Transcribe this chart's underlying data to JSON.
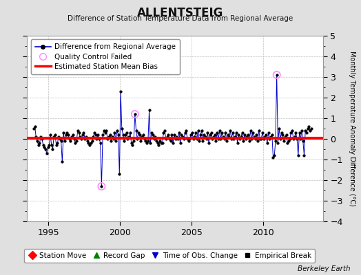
{
  "title": "ALLENTSTEIG",
  "subtitle": "Difference of Station Temperature Data from Regional Average",
  "ylabel": "Monthly Temperature Anomaly Difference (°C)",
  "xlabel_credit": "Berkeley Earth",
  "xlim": [
    1993.5,
    2014.2
  ],
  "ylim": [
    -4,
    5
  ],
  "yticks": [
    -4,
    -3,
    -2,
    -1,
    0,
    1,
    2,
    3,
    4,
    5
  ],
  "xticks": [
    1995,
    2000,
    2005,
    2010
  ],
  "bias_value": 0.05,
  "line_color": "#0000cc",
  "line_marker_color": "#000000",
  "bias_color": "#ff0000",
  "qc_color": "#ff88ff",
  "bg_color": "#e0e0e0",
  "plot_bg": "#ffffff",
  "legend1_entries": [
    {
      "label": "Difference from Regional Average"
    },
    {
      "label": "Quality Control Failed"
    },
    {
      "label": "Estimated Station Mean Bias"
    }
  ],
  "legend2_entries": [
    {
      "label": "Station Move",
      "color": "#ff0000",
      "marker": "D"
    },
    {
      "label": "Record Gap",
      "color": "#008000",
      "marker": "^"
    },
    {
      "label": "Time of Obs. Change",
      "color": "#0000cc",
      "marker": "v"
    },
    {
      "label": "Empirical Break",
      "color": "#000000",
      "marker": "s"
    }
  ],
  "time_series": [
    1993.958,
    1994.042,
    1994.125,
    1994.208,
    1994.292,
    1994.375,
    1994.458,
    1994.542,
    1994.625,
    1994.708,
    1994.792,
    1994.875,
    1994.958,
    1995.042,
    1995.125,
    1995.208,
    1995.292,
    1995.375,
    1995.458,
    1995.542,
    1995.625,
    1995.708,
    1995.792,
    1995.875,
    1995.958,
    1996.042,
    1996.125,
    1996.208,
    1996.292,
    1996.375,
    1996.458,
    1996.542,
    1996.625,
    1996.708,
    1996.792,
    1996.875,
    1996.958,
    1997.042,
    1997.125,
    1997.208,
    1997.292,
    1997.375,
    1997.458,
    1997.542,
    1997.625,
    1997.708,
    1997.792,
    1997.875,
    1997.958,
    1998.042,
    1998.125,
    1998.208,
    1998.292,
    1998.375,
    1998.458,
    1998.542,
    1998.625,
    1998.708,
    1998.792,
    1998.875,
    1998.958,
    1999.042,
    1999.125,
    1999.208,
    1999.292,
    1999.375,
    1999.458,
    1999.542,
    1999.625,
    1999.708,
    1999.792,
    1999.875,
    1999.958,
    2000.042,
    2000.125,
    2000.208,
    2000.292,
    2000.375,
    2000.458,
    2000.542,
    2000.625,
    2000.708,
    2000.792,
    2000.875,
    2000.958,
    2001.042,
    2001.125,
    2001.208,
    2001.292,
    2001.375,
    2001.458,
    2001.542,
    2001.625,
    2001.708,
    2001.792,
    2001.875,
    2001.958,
    2002.042,
    2002.125,
    2002.208,
    2002.292,
    2002.375,
    2002.458,
    2002.542,
    2002.625,
    2002.708,
    2002.792,
    2002.875,
    2002.958,
    2003.042,
    2003.125,
    2003.208,
    2003.292,
    2003.375,
    2003.458,
    2003.542,
    2003.625,
    2003.708,
    2003.792,
    2003.875,
    2003.958,
    2004.042,
    2004.125,
    2004.208,
    2004.292,
    2004.375,
    2004.458,
    2004.542,
    2004.625,
    2004.708,
    2004.792,
    2004.875,
    2004.958,
    2005.042,
    2005.125,
    2005.208,
    2005.292,
    2005.375,
    2005.458,
    2005.542,
    2005.625,
    2005.708,
    2005.792,
    2005.875,
    2005.958,
    2006.042,
    2006.125,
    2006.208,
    2006.292,
    2006.375,
    2006.458,
    2006.542,
    2006.625,
    2006.708,
    2006.792,
    2006.875,
    2006.958,
    2007.042,
    2007.125,
    2007.208,
    2007.292,
    2007.375,
    2007.458,
    2007.542,
    2007.625,
    2007.708,
    2007.792,
    2007.875,
    2007.958,
    2008.042,
    2008.125,
    2008.208,
    2008.292,
    2008.375,
    2008.458,
    2008.542,
    2008.625,
    2008.708,
    2008.792,
    2008.875,
    2008.958,
    2009.042,
    2009.125,
    2009.208,
    2009.292,
    2009.375,
    2009.458,
    2009.542,
    2009.625,
    2009.708,
    2009.792,
    2009.875,
    2009.958,
    2010.042,
    2010.125,
    2010.208,
    2010.292,
    2010.375,
    2010.458,
    2010.542,
    2010.625,
    2010.708,
    2010.792,
    2010.875,
    2010.958,
    2011.042,
    2011.125,
    2011.208,
    2011.292,
    2011.375,
    2011.458,
    2011.542,
    2011.625,
    2011.708,
    2011.792,
    2011.875,
    2011.958,
    2012.042,
    2012.125,
    2012.208,
    2012.292,
    2012.375,
    2012.458,
    2012.542,
    2012.625,
    2012.708,
    2012.792,
    2012.875,
    2012.958,
    2013.042,
    2013.125,
    2013.208,
    2013.292,
    2013.375
  ],
  "values": [
    0.5,
    0.6,
    0.1,
    -0.1,
    -0.3,
    -0.2,
    0.1,
    0.0,
    -0.3,
    -0.4,
    -0.5,
    -0.7,
    -0.4,
    -0.3,
    0.2,
    -0.3,
    -0.5,
    0.1,
    0.2,
    -0.3,
    -0.2,
    0.1,
    0.0,
    -0.1,
    -1.1,
    0.3,
    -0.1,
    0.2,
    0.3,
    0.2,
    0.0,
    -0.1,
    0.1,
    0.2,
    0.0,
    -0.2,
    -0.1,
    0.4,
    0.3,
    0.1,
    0.0,
    0.2,
    0.3,
    0.0,
    0.1,
    -0.1,
    -0.2,
    -0.3,
    -0.2,
    -0.1,
    0.1,
    0.3,
    0.2,
    0.0,
    0.2,
    0.0,
    -0.2,
    -2.3,
    0.2,
    0.4,
    0.3,
    0.4,
    0.0,
    0.1,
    0.2,
    -0.1,
    0.1,
    0.0,
    0.3,
    -0.1,
    0.4,
    0.2,
    -1.7,
    2.3,
    0.5,
    0.2,
    -0.1,
    0.2,
    0.3,
    0.0,
    0.1,
    0.3,
    -0.2,
    -0.3,
    -0.1,
    1.2,
    0.4,
    0.0,
    0.3,
    0.2,
    -0.1,
    0.1,
    0.2,
    0.0,
    -0.1,
    -0.2,
    -0.1,
    1.4,
    -0.2,
    0.3,
    0.2,
    0.0,
    0.1,
    -0.1,
    -0.2,
    -0.3,
    -0.1,
    -0.2,
    -0.2,
    0.3,
    0.4,
    0.0,
    0.1,
    0.2,
    0.0,
    -0.1,
    0.2,
    -0.2,
    0.2,
    0.0,
    0.1,
    0.0,
    0.3,
    -0.2,
    0.2,
    0.1,
    0.0,
    0.3,
    0.4,
    0.0,
    -0.1,
    0.0,
    0.2,
    0.3,
    0.0,
    0.1,
    0.3,
    0.0,
    0.4,
    -0.1,
    0.2,
    0.4,
    -0.1,
    0.2,
    0.1,
    0.0,
    0.3,
    -0.2,
    0.2,
    0.3,
    0.0,
    0.1,
    0.2,
    -0.1,
    0.3,
    0.0,
    0.4,
    0.0,
    0.3,
    0.1,
    0.0,
    0.3,
    -0.1,
    0.2,
    0.1,
    0.4,
    0.0,
    0.3,
    0.0,
    0.1,
    0.3,
    -0.2,
    0.2,
    0.0,
    0.1,
    0.3,
    -0.1,
    0.2,
    0.0,
    0.1,
    0.2,
    -0.1,
    0.4,
    0.0,
    0.3,
    0.1,
    0.0,
    0.2,
    -0.1,
    0.4,
    0.0,
    0.0,
    0.3,
    0.0,
    0.1,
    0.2,
    -0.2,
    0.3,
    0.0,
    0.1,
    0.2,
    -0.9,
    -0.8,
    -0.1,
    3.1,
    -0.2,
    0.5,
    0.0,
    0.3,
    0.2,
    -0.1,
    0.1,
    0.2,
    -0.2,
    -0.1,
    0.0,
    0.3,
    0.4,
    0.0,
    0.1,
    0.3,
    0.0,
    -0.8,
    0.3,
    0.0,
    0.4,
    -0.1,
    -0.8,
    0.4,
    0.3,
    0.5,
    0.6,
    0.4,
    0.5
  ],
  "qc_failed_times": [
    1998.708,
    2001.042,
    2010.958
  ],
  "qc_failed_values": [
    -2.3,
    1.2,
    3.1
  ]
}
